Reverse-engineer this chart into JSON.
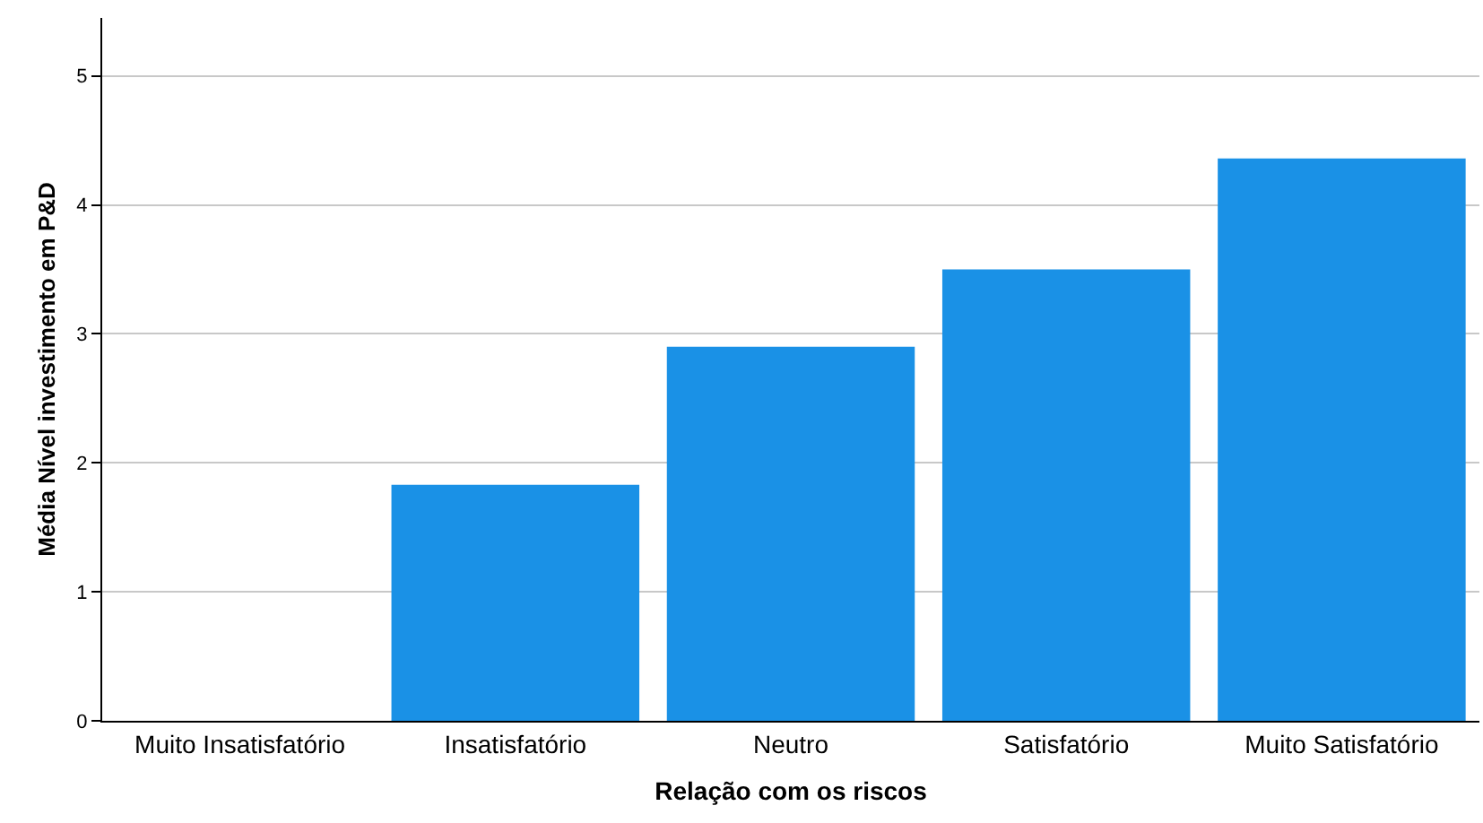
{
  "chart_data": {
    "type": "bar",
    "xlabel": "Relação com os riscos",
    "ylabel": "Média Nível investimento em P&D",
    "categories": [
      "Muito Insatisfatório",
      "Insatisfatório",
      "Neutro",
      "Satisfatório",
      "Muito Satisfatório"
    ],
    "values": [
      0,
      1.83,
      2.9,
      3.5,
      4.36
    ],
    "color": "#1a91e6",
    "ylim": [
      0,
      5.45
    ],
    "yticks": [
      0,
      1,
      2,
      3,
      4,
      5
    ],
    "grid": "y"
  }
}
